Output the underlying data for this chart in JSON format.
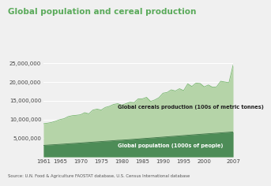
{
  "title": "Global population and cereal production",
  "source": "Source: U.N. Food & Agriculture FAOSTAT database, U.S. Census International database",
  "years": [
    1961,
    1962,
    1963,
    1964,
    1965,
    1966,
    1967,
    1968,
    1969,
    1970,
    1971,
    1972,
    1973,
    1974,
    1975,
    1976,
    1977,
    1978,
    1979,
    1980,
    1981,
    1982,
    1983,
    1984,
    1985,
    1986,
    1987,
    1988,
    1989,
    1990,
    1991,
    1992,
    1993,
    1994,
    1995,
    1996,
    1997,
    1998,
    1999,
    2000,
    2001,
    2002,
    2003,
    2004,
    2005,
    2006,
    2007
  ],
  "population": [
    3070000,
    3130000,
    3200000,
    3270000,
    3340000,
    3410000,
    3490000,
    3560000,
    3630000,
    3700000,
    3780000,
    3860000,
    3940000,
    4010000,
    4090000,
    4170000,
    4240000,
    4320000,
    4410000,
    4450000,
    4530000,
    4610000,
    4690000,
    4770000,
    4860000,
    4940000,
    5020000,
    5100000,
    5190000,
    5270000,
    5360000,
    5440000,
    5520000,
    5600000,
    5690000,
    5770000,
    5860000,
    5940000,
    6020000,
    6100000,
    6180000,
    6250000,
    6330000,
    6410000,
    6490000,
    6570000,
    6650000
  ],
  "cereals": [
    8850000,
    9000000,
    9200000,
    9550000,
    9950000,
    10200000,
    10750000,
    11000000,
    11100000,
    11250000,
    11800000,
    11500000,
    12500000,
    12750000,
    12500000,
    13200000,
    13500000,
    14000000,
    14200000,
    13800000,
    14200000,
    14600000,
    14500000,
    15500000,
    15500000,
    15900000,
    14800000,
    15200000,
    15800000,
    17000000,
    17200000,
    17900000,
    17600000,
    18200000,
    17700000,
    19500000,
    18800000,
    19700000,
    19600000,
    18700000,
    19200000,
    18600000,
    18700000,
    20200000,
    20000000,
    19800000,
    24500000
  ],
  "bg_color": "#f0f0f0",
  "cereal_color_fill": "#b5d4a8",
  "cereal_color_line": "#7ab870",
  "pop_color_fill": "#4d8c57",
  "pop_color_line": "#3a7044",
  "title_color": "#5aaa5a",
  "label_pop": "Global population (1000s of people)",
  "label_cereal": "Global cereals production (100s of metric tonnes)",
  "ylim": [
    0,
    27000000
  ],
  "yticks": [
    5000000,
    10000000,
    15000000,
    20000000,
    25000000
  ],
  "xticks": [
    1961,
    1965,
    1970,
    1975,
    1980,
    1985,
    1990,
    1995,
    2000,
    2007
  ]
}
